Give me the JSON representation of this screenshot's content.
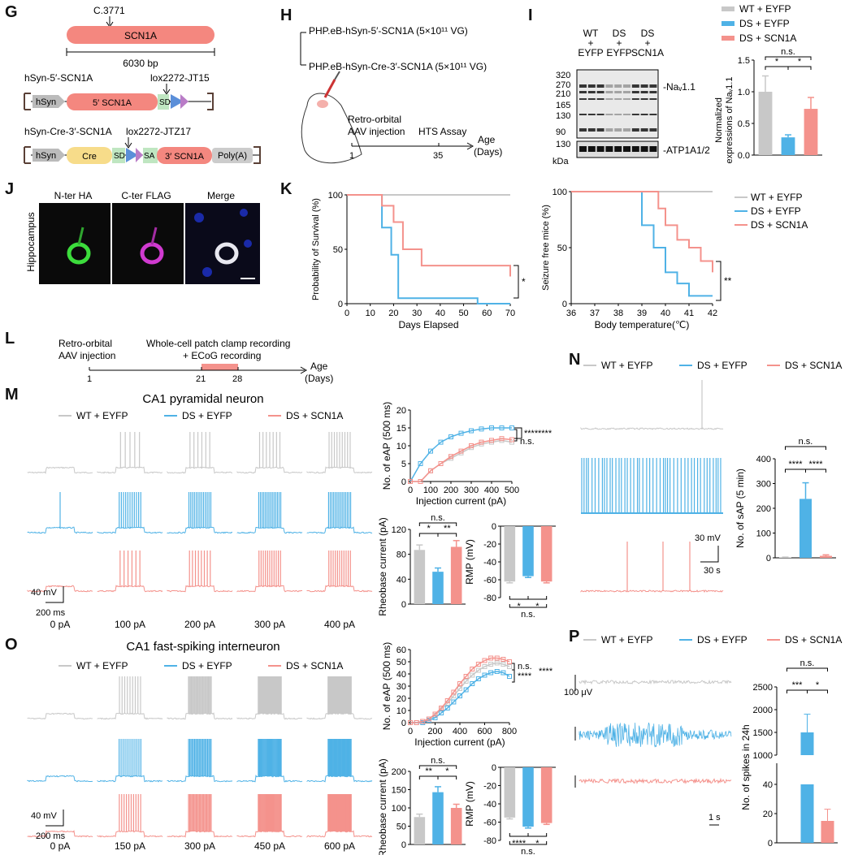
{
  "colors": {
    "wt": "#c8c8c8",
    "ds": "#4fb2e6",
    "rescue": "#f4928c",
    "gene": "#f4877f",
    "cre": "#f7dc8a",
    "bar": "#999999"
  },
  "legend": {
    "wt": "WT + EYFP",
    "ds": "DS + EYFP",
    "rescue": "DS + SCN1A"
  },
  "panelG": {
    "letter": "G",
    "site": "C.3771",
    "gene": "SCN1A",
    "length": "6030 bp",
    "c1": {
      "name": "hSyn-5′-SCN1A",
      "lox": "lox2272-JT15",
      "hsyn": "hSyn",
      "frag": "5′ SCN1A",
      "sd": "SD"
    },
    "c2": {
      "name": "hSyn-Cre-3′-SCN1A",
      "lox": "lox2272-JTZ17",
      "hsyn": "hSyn",
      "cre": "Cre",
      "sd": "SD",
      "sa": "SA",
      "frag": "3′ SCN1A",
      "polya": "Poly(A)"
    }
  },
  "panelH": {
    "letter": "H",
    "vec1": "PHP.eB-hSyn-5′-SCN1A (5×10¹¹ VG)",
    "vec2": "PHP.eB-hSyn-Cre-3′-SCN1A (5×10¹¹ VG)",
    "step1": "Retro-orbital",
    "step1b": "AAV injection",
    "step2": "HTS Assay",
    "age": "Age",
    "days": "(Days)",
    "d1": "1",
    "d2": "35"
  },
  "panelI": {
    "letter": "I",
    "groups": [
      [
        "WT",
        "+",
        "EYFP"
      ],
      [
        "DS",
        "+",
        "EYFP"
      ],
      [
        "DS",
        "+",
        "SCN1A"
      ]
    ],
    "mw": [
      "320",
      "270",
      "210",
      "165",
      "130",
      "90"
    ],
    "mw2": "130",
    "kda": "kDa",
    "band1": "-Naᵥ1.1",
    "band2": "-ATP1A1/2",
    "ylabel1": "Normalized",
    "ylabel2": "expressions of Naᵥ1.1",
    "yticks": [
      "0.0",
      "0.5",
      "1.0",
      "1.5"
    ],
    "ns": "n.s.",
    "star": "*"
  },
  "panelJ": {
    "letter": "J",
    "t1": "N-ter HA",
    "t2": "C-ter FLAG",
    "t3": "Merge",
    "region": "Hippocampus"
  },
  "panelK": {
    "letter": "K",
    "ylabel1": "Probability of Survival (%)",
    "xlabel1": "Days Elapsed",
    "xticks1": [
      "0",
      "10",
      "20",
      "30",
      "40",
      "50",
      "60",
      "70"
    ],
    "yticks": [
      "0",
      "50",
      "100"
    ],
    "sig1": "*",
    "ylabel2": "Seizure free mice (%)",
    "xlabel2": "Body temperature(℃)",
    "xticks2": [
      "36",
      "37",
      "38",
      "39",
      "40",
      "41",
      "42"
    ],
    "sig2": "**"
  },
  "panelL": {
    "letter": "L",
    "s1": "Retro-orbital",
    "s1b": "AAV injection",
    "s2": "Whole-cell patch clamp recording",
    "s2b": "+ ECoG recording",
    "d1": "1",
    "d2": "21",
    "d3": "28",
    "age": "Age",
    "days": "(Days)"
  },
  "panelM": {
    "letter": "M",
    "title": "CA1 pyramidal neuron",
    "currents": [
      "0 pA",
      "100 pA",
      "200 pA",
      "300 pA",
      "400 pA"
    ],
    "sv": "40 mV",
    "sh": "200 ms",
    "ylabel": "No. of  eAP (500 ms)",
    "xlabel": "Injection current (pA)",
    "yticks": [
      "0",
      "5",
      "10",
      "15",
      "20"
    ],
    "xticks": [
      "0",
      "100",
      "200",
      "300",
      "400",
      "500"
    ],
    "sig1": "****",
    "sig2": "****",
    "sig3": "n.s.",
    "rb_ylabel": "Rheobase current (pA)",
    "rb_yticks": [
      "0",
      "40",
      "80",
      "120"
    ],
    "rb_ns": "n.s.",
    "rb_s1": "*",
    "rb_s2": "**",
    "rmp_ylabel": "RMP (mV)",
    "rmp_yticks": [
      "0",
      "-20",
      "-40",
      "-60",
      "-80"
    ],
    "rmp_s1": "*",
    "rmp_s2": "*",
    "rmp_ns": "n.s."
  },
  "panelN": {
    "letter": "N",
    "sv": "30 mV",
    "sh": "30 s",
    "ylabel": "No. of  sAP (5 min)",
    "yticks": [
      "0",
      "100",
      "200",
      "300",
      "400"
    ],
    "ns": "n.s.",
    "s1": "****",
    "s2": "****"
  },
  "panelO": {
    "letter": "O",
    "title": "CA1 fast-spiking interneuron",
    "currents": [
      "0 pA",
      "150 pA",
      "300 pA",
      "450 pA",
      "600 pA"
    ],
    "sv": "40 mV",
    "sh": "200 ms",
    "ylabel": "No. of  eAP (500 ms)",
    "xlabel": "Injection current (pA)",
    "yticks": [
      "0",
      "10",
      "20",
      "30",
      "40",
      "50",
      "60"
    ],
    "xticks": [
      "0",
      "200",
      "400",
      "600",
      "800"
    ],
    "sig1": "n.s.",
    "sig2": "****",
    "sig3": "****",
    "rb_ylabel": "Rheobase current (pA)",
    "rb_yticks": [
      "0",
      "50",
      "100",
      "150",
      "200"
    ],
    "rb_ns": "n.s.",
    "rb_s1": "**",
    "rb_s2": "*",
    "rmp_ylabel": "RMP (mV)",
    "rmp_yticks": [
      "0",
      "-20",
      "-40",
      "-60",
      "-80"
    ],
    "rmp_s1": "****",
    "rmp_s2": "*",
    "rmp_ns": "n.s."
  },
  "panelP": {
    "letter": "P",
    "sv": "100 μV",
    "sh": "1 s",
    "ylabel": "No. of spikes in 24h",
    "yticks_low": [
      "0",
      "20",
      "40"
    ],
    "yticks_high": [
      "1000",
      "1500",
      "2000",
      "2500"
    ],
    "ns": "n.s.",
    "s1": "***",
    "s2": "*"
  },
  "chart_data": [
    {
      "type": "bar",
      "panel": "I",
      "categories": [
        "WT + EYFP",
        "DS + EYFP",
        "DS + SCN1A"
      ],
      "values": [
        1.0,
        0.28,
        0.73
      ],
      "errors": [
        0.25,
        0.04,
        0.18
      ],
      "ylim": [
        0,
        1.5
      ]
    },
    {
      "type": "line",
      "panel": "K-left",
      "xlabel": "Days Elapsed",
      "ylabel": "Probability of Survival (%)",
      "series": [
        {
          "name": "WT + EYFP",
          "x": [
            0,
            70
          ],
          "y": [
            100,
            100
          ]
        },
        {
          "name": "DS + EYFP",
          "x": [
            0,
            15,
            15,
            19,
            19,
            22,
            22,
            56,
            56,
            70
          ],
          "y": [
            100,
            100,
            70,
            70,
            45,
            45,
            5,
            5,
            0,
            0
          ]
        },
        {
          "name": "DS + SCN1A",
          "x": [
            0,
            15,
            15,
            20,
            20,
            24,
            24,
            32,
            32,
            70,
            70
          ],
          "y": [
            100,
            100,
            90,
            90,
            75,
            75,
            50,
            50,
            35,
            35,
            25
          ]
        }
      ]
    },
    {
      "type": "line",
      "panel": "K-right",
      "xlabel": "Body temperature(℃)",
      "ylabel": "Seizure free mice (%)",
      "series": [
        {
          "name": "WT + EYFP",
          "x": [
            36,
            42
          ],
          "y": [
            100,
            100
          ]
        },
        {
          "name": "DS + EYFP",
          "x": [
            36,
            39,
            39,
            39.5,
            39.5,
            40,
            40,
            40.5,
            40.5,
            41,
            41,
            42
          ],
          "y": [
            100,
            100,
            70,
            70,
            50,
            50,
            28,
            28,
            18,
            18,
            7,
            7
          ]
        },
        {
          "name": "DS + SCN1A",
          "x": [
            36,
            39.7,
            39.7,
            40,
            40,
            40.5,
            40.5,
            41,
            41,
            41.5,
            41.5,
            42,
            42
          ],
          "y": [
            100,
            100,
            85,
            85,
            70,
            70,
            57,
            57,
            50,
            50,
            38,
            38,
            28
          ]
        }
      ]
    },
    {
      "type": "line",
      "panel": "M-eAP",
      "series": [
        {
          "name": "WT + EYFP",
          "x": [
            0,
            50,
            100,
            150,
            200,
            250,
            300,
            350,
            400,
            450,
            500
          ],
          "y": [
            0,
            0,
            3,
            5,
            6.5,
            8,
            9.5,
            10.5,
            11,
            11.5,
            11
          ]
        },
        {
          "name": "DS + EYFP",
          "x": [
            0,
            50,
            100,
            150,
            200,
            250,
            300,
            350,
            400,
            450,
            500
          ],
          "y": [
            0,
            5,
            8.5,
            11,
            12.5,
            13.5,
            14.2,
            14.7,
            15,
            15,
            15
          ]
        },
        {
          "name": "DS + SCN1A",
          "x": [
            0,
            50,
            100,
            150,
            200,
            250,
            300,
            350,
            400,
            450,
            500
          ],
          "y": [
            0,
            0,
            3,
            5,
            7,
            8.5,
            10,
            11,
            11.5,
            12,
            11.7
          ]
        }
      ]
    },
    {
      "type": "bar",
      "panel": "M-rheobase",
      "categories": [
        "WT + EYFP",
        "DS + EYFP",
        "DS + SCN1A"
      ],
      "values": [
        87,
        52,
        92
      ],
      "errors": [
        8,
        6,
        10
      ]
    },
    {
      "type": "bar",
      "panel": "M-RMP",
      "categories": [
        "WT + EYFP",
        "DS + EYFP",
        "DS + SCN1A"
      ],
      "values": [
        -62,
        -56,
        -62
      ],
      "errors": [
        1.5,
        1.5,
        1.5
      ]
    },
    {
      "type": "bar",
      "panel": "N",
      "categories": [
        "WT + EYFP",
        "DS + EYFP",
        "DS + SCN1A"
      ],
      "values": [
        2,
        238,
        8
      ],
      "errors": [
        1,
        65,
        4
      ]
    },
    {
      "type": "line",
      "panel": "O-eAP",
      "series": [
        {
          "name": "WT + EYFP",
          "x": [
            0,
            50,
            100,
            150,
            200,
            250,
            300,
            350,
            400,
            450,
            500,
            550,
            600,
            650,
            700,
            750,
            800
          ],
          "y": [
            0,
            0,
            1,
            3,
            6,
            11,
            16,
            22,
            28,
            34,
            39,
            43,
            46,
            48,
            49,
            48,
            46
          ]
        },
        {
          "name": "DS + EYFP",
          "x": [
            0,
            50,
            100,
            150,
            200,
            250,
            300,
            350,
            400,
            450,
            500,
            550,
            600,
            650,
            700,
            750,
            800
          ],
          "y": [
            0,
            0,
            0,
            2,
            4,
            8,
            12,
            17,
            22,
            27,
            32,
            36,
            39,
            41,
            42,
            41,
            38
          ]
        },
        {
          "name": "DS + SCN1A",
          "x": [
            0,
            50,
            100,
            150,
            200,
            250,
            300,
            350,
            400,
            450,
            500,
            550,
            600,
            650,
            700,
            750,
            800
          ],
          "y": [
            0,
            0,
            1,
            3,
            7,
            12,
            18,
            25,
            32,
            38,
            44,
            48,
            51,
            53,
            53,
            52,
            50
          ]
        }
      ]
    },
    {
      "type": "bar",
      "panel": "O-rheobase",
      "categories": [
        "WT + EYFP",
        "DS + EYFP",
        "DS + SCN1A"
      ],
      "values": [
        75,
        143,
        100
      ],
      "errors": [
        8,
        15,
        10
      ]
    },
    {
      "type": "bar",
      "panel": "O-RMP",
      "categories": [
        "WT + EYFP",
        "DS + EYFP",
        "DS + SCN1A"
      ],
      "values": [
        -55,
        -65,
        -61
      ],
      "errors": [
        1.5,
        1.5,
        1.5
      ]
    },
    {
      "type": "bar",
      "panel": "P",
      "categories": [
        "WT + EYFP",
        "DS + EYFP",
        "DS + SCN1A"
      ],
      "values": [
        0,
        1500,
        15
      ],
      "errors": [
        0,
        400,
        8
      ]
    }
  ]
}
